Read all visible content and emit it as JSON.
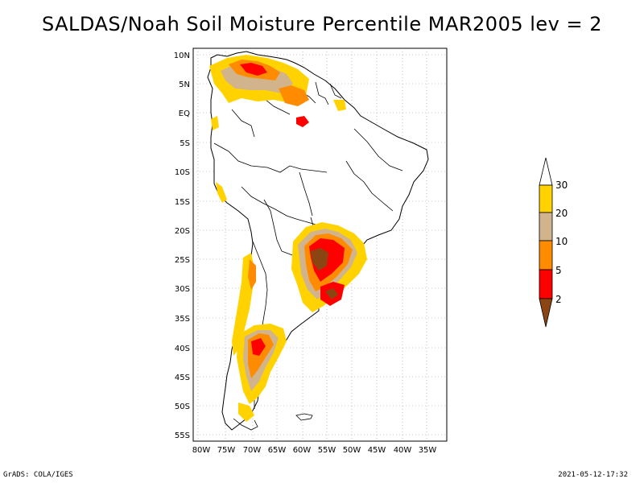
{
  "title": "SALDAS/Noah Soil Moisture Percentile MAR2005 lev = 2",
  "footer": {
    "left": "GrADS: COLA/IGES",
    "right": "2021-05-12-17:32"
  },
  "map": {
    "region": "South America",
    "lon_range": [
      -80,
      -30
    ],
    "lat_range": [
      -56,
      12
    ],
    "lat_ticks": [
      "10N",
      "5N",
      "EQ",
      "5S",
      "10S",
      "15S",
      "20S",
      "25S",
      "30S",
      "35S",
      "40S",
      "45S",
      "50S",
      "55S"
    ],
    "lon_ticks": [
      "80W",
      "75W",
      "70W",
      "65W",
      "60W",
      "55W",
      "50W",
      "45W",
      "40W",
      "35W"
    ],
    "grid": true
  },
  "colorbar": {
    "labels": [
      "30",
      "20",
      "10",
      "5",
      "2"
    ],
    "colors": {
      "above30": "#ffffff",
      "c20_30": "#ffd200",
      "c10_20": "#d2b48c",
      "c5_10": "#ff8c00",
      "c2_5": "#ff0000",
      "below2": "#8b4513"
    }
  }
}
